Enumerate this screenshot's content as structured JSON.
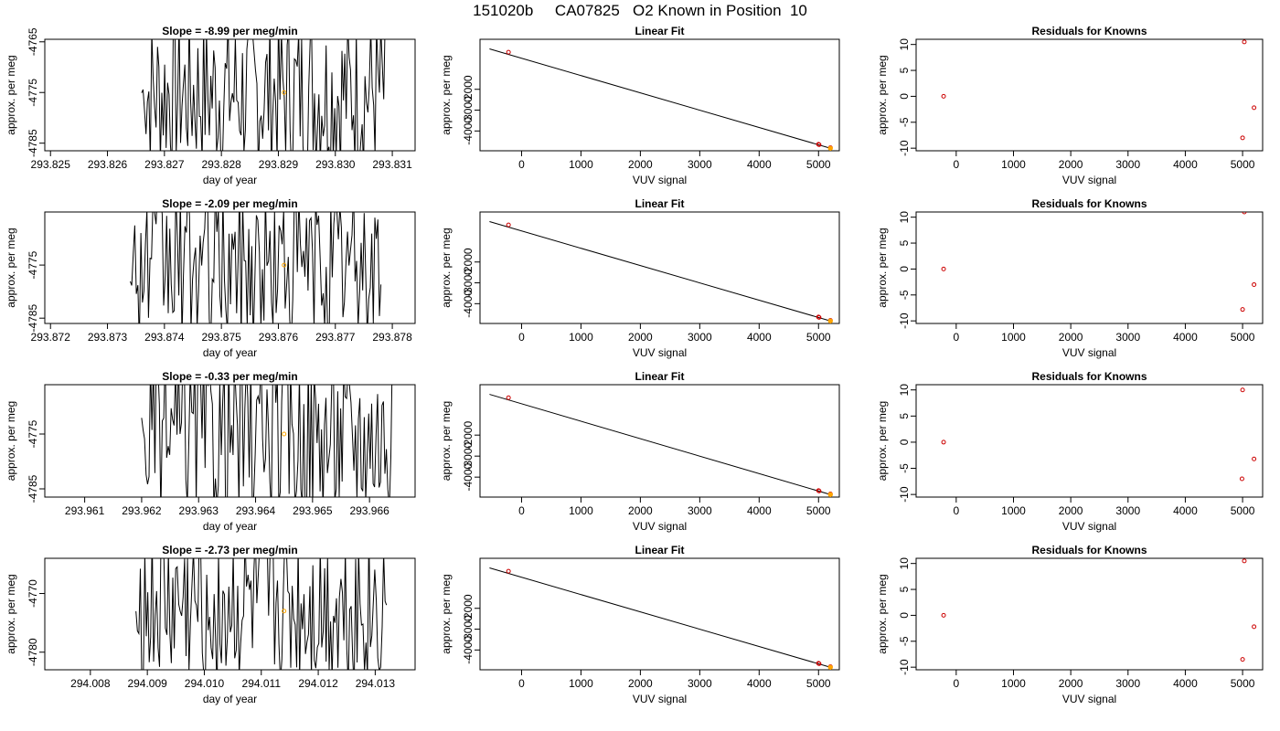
{
  "figure": {
    "title": "151020b     CA07825   O2 Known in Position  10"
  },
  "chart_data": [
    {
      "row": 1,
      "col": 1,
      "type": "line",
      "title": "Slope =  -8.99  per meg/min",
      "xlabel": "day of year",
      "ylabel": "approx. per meg",
      "xlim": [
        293.8249,
        293.8314
      ],
      "ylim": [
        -4786.5,
        -4764.5
      ],
      "xticks": [
        293.825,
        293.826,
        293.827,
        293.828,
        293.829,
        293.83,
        293.831
      ],
      "xtick_labels": [
        "293.825",
        "293.826",
        "293.827",
        "293.828",
        "293.829",
        "293.830",
        "293.831"
      ],
      "yticks": [
        -4765,
        -4775,
        -4785
      ],
      "ytick_labels": [
        "-4765",
        "-4775",
        "-4785"
      ],
      "x_start": 293.8266,
      "x_end": 293.8309,
      "n_segments": 170,
      "center": -4775,
      "spread": 32,
      "marker": {
        "x": 293.8291,
        "y": -4775,
        "color": "#ffa500"
      }
    },
    {
      "row": 1,
      "col": 2,
      "type": "scatter",
      "title": "Linear Fit",
      "xlabel": "VUV signal",
      "ylabel": "approx. per meg",
      "xlim": [
        -700,
        5350
      ],
      "ylim": [
        -4950,
        400
      ],
      "xticks": [
        0,
        1000,
        2000,
        3000,
        4000,
        5000
      ],
      "xtick_labels": [
        "0",
        "1000",
        "2000",
        "3000",
        "4000",
        "5000"
      ],
      "yticks": [
        -2000,
        -3000,
        -4000
      ],
      "ytick_labels": [
        "-2000",
        "-3000",
        "-4000"
      ],
      "points": [
        {
          "x": -220,
          "y": -220
        },
        {
          "x": 5000,
          "y": -4640
        },
        {
          "x": 5010,
          "y": -4660
        },
        {
          "x": 5200,
          "y": -4800
        }
      ],
      "line": {
        "x": [
          -540,
          5200
        ],
        "y": [
          -60,
          -4830
        ]
      },
      "highlight": {
        "x": 5200,
        "y": -4830,
        "color": "#ffa500"
      }
    },
    {
      "row": 1,
      "col": 3,
      "type": "scatter",
      "title": "Residuals for Knowns",
      "xlabel": "VUV signal",
      "ylabel": "approx. per meg",
      "xlim": [
        -700,
        5350
      ],
      "ylim": [
        -10.5,
        11
      ],
      "xticks": [
        0,
        1000,
        2000,
        3000,
        4000,
        5000
      ],
      "xtick_labels": [
        "0",
        "1000",
        "2000",
        "3000",
        "4000",
        "5000"
      ],
      "yticks": [
        10,
        5,
        0,
        -5,
        -10
      ],
      "ytick_labels": [
        "10",
        "5",
        "0",
        "-5",
        "-10"
      ],
      "points": [
        {
          "x": -220,
          "y": 0
        },
        {
          "x": 5030,
          "y": 10.5
        },
        {
          "x": 5000,
          "y": -8
        },
        {
          "x": 5200,
          "y": -2.2
        }
      ]
    },
    {
      "row": 2,
      "col": 1,
      "type": "line",
      "title": "Slope =  -2.09  per meg/min",
      "xlabel": "day of year",
      "ylabel": "approx. per meg",
      "xlim": [
        293.8719,
        293.8784
      ],
      "ylim": [
        -4786,
        -4765
      ],
      "xticks": [
        293.872,
        293.873,
        293.874,
        293.875,
        293.876,
        293.877,
        293.878
      ],
      "xtick_labels": [
        "293.872",
        "293.873",
        "293.874",
        "293.875",
        "293.876",
        "293.877",
        "293.878"
      ],
      "yticks": [
        -4775,
        -4785
      ],
      "ytick_labels": [
        "-4775",
        "-4785"
      ],
      "x_start": 293.8734,
      "x_end": 293.8778,
      "n_segments": 165,
      "center": -4775,
      "spread": 30,
      "marker": {
        "x": 293.8761,
        "y": -4775,
        "color": "#ffa500"
      }
    },
    {
      "row": 2,
      "col": 2,
      "type": "scatter",
      "title": "Linear Fit",
      "xlabel": "VUV signal",
      "ylabel": "approx. per meg",
      "xlim": [
        -700,
        5350
      ],
      "ylim": [
        -4950,
        400
      ],
      "xticks": [
        0,
        1000,
        2000,
        3000,
        4000,
        5000
      ],
      "xtick_labels": [
        "0",
        "1000",
        "2000",
        "3000",
        "4000",
        "5000"
      ],
      "yticks": [
        -2000,
        -3000,
        -4000
      ],
      "ytick_labels": [
        "-2000",
        "-3000",
        "-4000"
      ],
      "points": [
        {
          "x": -220,
          "y": -220
        },
        {
          "x": 5000,
          "y": -4640
        },
        {
          "x": 5010,
          "y": -4660
        },
        {
          "x": 5200,
          "y": -4800
        }
      ],
      "line": {
        "x": [
          -540,
          5200
        ],
        "y": [
          -60,
          -4830
        ]
      },
      "highlight": {
        "x": 5200,
        "y": -4830,
        "color": "#ffa500"
      }
    },
    {
      "row": 2,
      "col": 3,
      "type": "scatter",
      "title": "Residuals for Knowns",
      "xlabel": "VUV signal",
      "ylabel": "approx. per meg",
      "xlim": [
        -700,
        5350
      ],
      "ylim": [
        -10.5,
        11
      ],
      "xticks": [
        0,
        1000,
        2000,
        3000,
        4000,
        5000
      ],
      "xtick_labels": [
        "0",
        "1000",
        "2000",
        "3000",
        "4000",
        "5000"
      ],
      "yticks": [
        10,
        5,
        0,
        -5,
        -10
      ],
      "ytick_labels": [
        "10",
        "5",
        "0",
        "-5",
        "-10"
      ],
      "points": [
        {
          "x": -220,
          "y": 0
        },
        {
          "x": 5030,
          "y": 11
        },
        {
          "x": 5000,
          "y": -7.8
        },
        {
          "x": 5200,
          "y": -3
        }
      ]
    },
    {
      "row": 3,
      "col": 1,
      "type": "line",
      "title": "Slope =  -0.33  per meg/min",
      "xlabel": "day of year",
      "ylabel": "approx. per meg",
      "xlim": [
        293.9603,
        293.9668
      ],
      "ylim": [
        -4786.5,
        -4766
      ],
      "xticks": [
        293.961,
        293.962,
        293.963,
        293.964,
        293.965,
        293.966
      ],
      "xtick_labels": [
        "293.961",
        "293.962",
        "293.963",
        "293.964",
        "293.965",
        "293.966"
      ],
      "yticks": [
        -4775,
        -4785
      ],
      "ytick_labels": [
        "-4775",
        "-4785"
      ],
      "x_start": 293.962,
      "x_end": 293.9664,
      "n_segments": 170,
      "center": -4775,
      "spread": 30,
      "marker": {
        "x": 293.9645,
        "y": -4775,
        "color": "#ffa500"
      }
    },
    {
      "row": 3,
      "col": 2,
      "type": "scatter",
      "title": "Linear Fit",
      "xlabel": "VUV signal",
      "ylabel": "approx. per meg",
      "xlim": [
        -700,
        5350
      ],
      "ylim": [
        -4950,
        400
      ],
      "xticks": [
        0,
        1000,
        2000,
        3000,
        4000,
        5000
      ],
      "xtick_labels": [
        "0",
        "1000",
        "2000",
        "3000",
        "4000",
        "5000"
      ],
      "yticks": [
        -2000,
        -3000,
        -4000
      ],
      "ytick_labels": [
        "-2000",
        "-3000",
        "-4000"
      ],
      "points": [
        {
          "x": -220,
          "y": -220
        },
        {
          "x": 5000,
          "y": -4640
        },
        {
          "x": 5010,
          "y": -4660
        },
        {
          "x": 5200,
          "y": -4800
        }
      ],
      "line": {
        "x": [
          -540,
          5200
        ],
        "y": [
          -60,
          -4830
        ]
      },
      "highlight": {
        "x": 5200,
        "y": -4830,
        "color": "#ffa500"
      }
    },
    {
      "row": 3,
      "col": 3,
      "type": "scatter",
      "title": "Residuals for Knowns",
      "xlabel": "VUV signal",
      "ylabel": "approx. per meg",
      "xlim": [
        -700,
        5350
      ],
      "ylim": [
        -10.5,
        11
      ],
      "xticks": [
        0,
        1000,
        2000,
        3000,
        4000,
        5000
      ],
      "xtick_labels": [
        "0",
        "1000",
        "2000",
        "3000",
        "4000",
        "5000"
      ],
      "yticks": [
        10,
        5,
        0,
        -5,
        -10
      ],
      "ytick_labels": [
        "10",
        "5",
        "0",
        "-5",
        "-10"
      ],
      "points": [
        {
          "x": -220,
          "y": 0
        },
        {
          "x": 5000,
          "y": 10
        },
        {
          "x": 4990,
          "y": -7
        },
        {
          "x": 5200,
          "y": -3.2
        }
      ]
    },
    {
      "row": 4,
      "col": 1,
      "type": "line",
      "title": "Slope =  -2.73  per meg/min",
      "xlabel": "day of year",
      "ylabel": "approx. per meg",
      "xlim": [
        294.0072,
        294.0137
      ],
      "ylim": [
        -4783,
        -4764
      ],
      "xticks": [
        294.008,
        294.009,
        294.01,
        294.011,
        294.012,
        294.013
      ],
      "xtick_labels": [
        "294.008",
        "294.009",
        "294.010",
        "294.011",
        "294.012",
        "294.013"
      ],
      "yticks": [
        -4770,
        -4780
      ],
      "ytick_labels": [
        "-4770",
        "-4780"
      ],
      "x_start": 294.0088,
      "x_end": 294.0132,
      "n_segments": 170,
      "center": -4773,
      "spread": 28,
      "marker": {
        "x": 294.0114,
        "y": -4773,
        "color": "#ffa500"
      }
    },
    {
      "row": 4,
      "col": 2,
      "type": "scatter",
      "title": "Linear Fit",
      "xlabel": "VUV signal",
      "ylabel": "approx. per meg",
      "xlim": [
        -700,
        5350
      ],
      "ylim": [
        -4950,
        400
      ],
      "xticks": [
        0,
        1000,
        2000,
        3000,
        4000,
        5000
      ],
      "xtick_labels": [
        "0",
        "1000",
        "2000",
        "3000",
        "4000",
        "5000"
      ],
      "yticks": [
        -2000,
        -3000,
        -4000
      ],
      "ytick_labels": [
        "-2000",
        "-3000",
        "-4000"
      ],
      "points": [
        {
          "x": -220,
          "y": -220
        },
        {
          "x": 5000,
          "y": -4640
        },
        {
          "x": 5010,
          "y": -4660
        },
        {
          "x": 5200,
          "y": -4800
        }
      ],
      "line": {
        "x": [
          -540,
          5200
        ],
        "y": [
          -60,
          -4830
        ]
      },
      "highlight": {
        "x": 5200,
        "y": -4830,
        "color": "#ffa500"
      }
    },
    {
      "row": 4,
      "col": 3,
      "type": "scatter",
      "title": "Residuals for Knowns",
      "xlabel": "VUV signal",
      "ylabel": "approx. per meg",
      "xlim": [
        -700,
        5350
      ],
      "ylim": [
        -10.5,
        11
      ],
      "xticks": [
        0,
        1000,
        2000,
        3000,
        4000,
        5000
      ],
      "xtick_labels": [
        "0",
        "1000",
        "2000",
        "3000",
        "4000",
        "5000"
      ],
      "yticks": [
        10,
        5,
        0,
        -5,
        -10
      ],
      "ytick_labels": [
        "10",
        "5",
        "0",
        "-5",
        "-10"
      ],
      "points": [
        {
          "x": -220,
          "y": 0
        },
        {
          "x": 5030,
          "y": 10.5
        },
        {
          "x": 5000,
          "y": -8.5
        },
        {
          "x": 5200,
          "y": -2.2
        }
      ]
    }
  ],
  "colors": {
    "axis": "#000000",
    "series": "#000000",
    "point": "#cc0000",
    "highlight": "#ffa500"
  }
}
